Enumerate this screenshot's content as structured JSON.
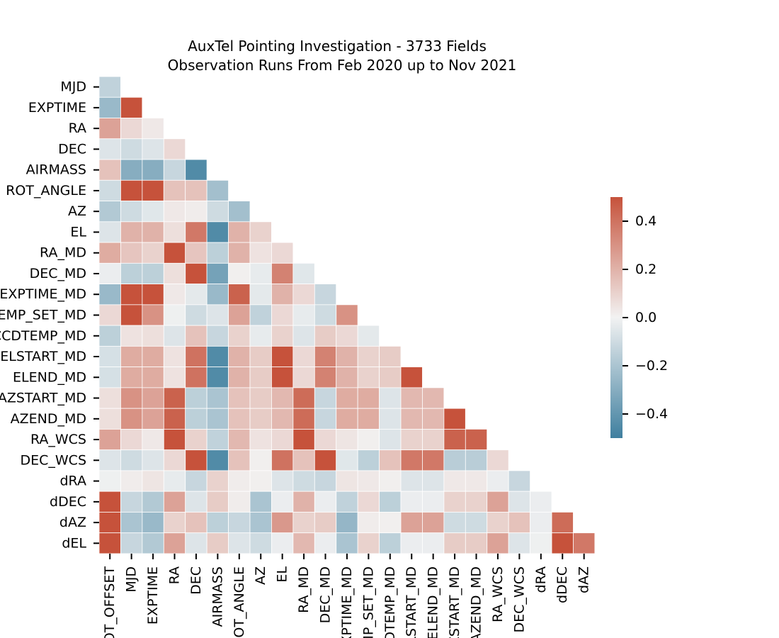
{
  "chart_data": {
    "type": "heatmap",
    "title_lines": [
      "AuxTel Pointing Investigation - 3733 Fields",
      "Observation Runs From Feb 2020 up to Nov 2021"
    ],
    "y_labels": [
      "MJD",
      "EXPTIME",
      "RA",
      "DEC",
      "AIRMASS",
      "ROT_ANGLE",
      "AZ",
      "EL",
      "RA_MD",
      "DEC_MD",
      "EXPTIME_MD",
      "TEMP_SET_MD",
      "CCDTEMP_MD",
      "ELSTART_MD",
      "ELEND_MD",
      "AZSTART_MD",
      "AZEND_MD",
      "RA_WCS",
      "DEC_WCS",
      "dRA",
      "dDEC",
      "dAZ",
      "dEL"
    ],
    "x_labels": [
      "ROT_OFFSET",
      "MJD",
      "EXPTIME",
      "RA",
      "DEC",
      "AIRMASS",
      "ROT_ANGLE",
      "AZ",
      "EL",
      "RA_MD",
      "DEC_MD",
      "EXPTIME_MD",
      "TEMP_SET_MD",
      "CCDTEMP_MD",
      "ELSTART_MD",
      "ELEND_MD",
      "AZSTART_MD",
      "AZEND_MD",
      "RA_WCS",
      "DEC_WCS",
      "dRA",
      "dDEC",
      "dAZ"
    ],
    "matrix": [
      [
        -0.14
      ],
      [
        -0.25,
        0.5
      ],
      [
        0.25,
        0.08,
        0.03
      ],
      [
        -0.06,
        -0.1,
        -0.06,
        0.08
      ],
      [
        0.15,
        -0.3,
        -0.3,
        -0.12,
        -0.45
      ],
      [
        -0.1,
        0.5,
        0.5,
        0.15,
        0.15,
        -0.22
      ],
      [
        -0.18,
        -0.1,
        -0.05,
        0.03,
        0.02,
        -0.1,
        -0.22
      ],
      [
        -0.06,
        0.2,
        0.2,
        0.06,
        0.38,
        -0.45,
        0.2,
        0.1
      ],
      [
        0.22,
        0.14,
        0.1,
        0.5,
        0.14,
        -0.15,
        0.2,
        0.05,
        0.08
      ],
      [
        -0.02,
        -0.15,
        -0.15,
        0.06,
        0.5,
        -0.35,
        0.01,
        -0.03,
        0.35,
        -0.05
      ],
      [
        -0.25,
        0.5,
        0.5,
        0.03,
        -0.04,
        -0.25,
        0.45,
        -0.04,
        0.2,
        0.08,
        -0.12
      ],
      [
        0.08,
        0.5,
        0.3,
        -0.01,
        -0.1,
        -0.06,
        0.25,
        -0.14,
        0.08,
        -0.03,
        -0.1,
        0.3
      ],
      [
        -0.15,
        0.05,
        0.06,
        -0.06,
        0.15,
        -0.12,
        0.1,
        -0.03,
        0.1,
        -0.06,
        0.12,
        0.08,
        -0.04
      ],
      [
        -0.08,
        0.22,
        0.22,
        0.05,
        0.4,
        -0.45,
        0.2,
        0.12,
        0.5,
        0.08,
        0.35,
        0.2,
        0.1,
        0.12
      ],
      [
        -0.08,
        0.22,
        0.22,
        0.05,
        0.4,
        -0.45,
        0.2,
        0.12,
        0.5,
        0.08,
        0.35,
        0.2,
        0.1,
        0.12,
        0.5
      ],
      [
        0.06,
        0.3,
        0.25,
        0.45,
        -0.15,
        -0.2,
        0.15,
        0.12,
        0.18,
        0.42,
        -0.12,
        0.22,
        0.22,
        -0.06,
        0.18,
        0.18
      ],
      [
        0.06,
        0.3,
        0.25,
        0.45,
        -0.15,
        -0.2,
        0.15,
        0.12,
        0.18,
        0.42,
        -0.12,
        0.22,
        0.22,
        -0.06,
        0.18,
        0.18,
        0.5
      ],
      [
        0.25,
        0.08,
        0.03,
        0.5,
        0.1,
        -0.14,
        0.18,
        0.05,
        0.08,
        0.5,
        0.08,
        0.04,
        0.01,
        -0.06,
        0.1,
        0.1,
        0.45,
        0.45
      ],
      [
        -0.06,
        -0.1,
        -0.06,
        0.08,
        0.5,
        -0.45,
        0.15,
        0.01,
        0.4,
        0.15,
        0.5,
        -0.05,
        -0.15,
        0.15,
        0.38,
        0.38,
        -0.16,
        -0.16,
        0.08
      ],
      [
        -0.01,
        0.02,
        0.04,
        -0.03,
        -0.12,
        0.1,
        0.02,
        0.01,
        -0.06,
        -0.1,
        -0.12,
        0.04,
        0.03,
        0.01,
        -0.06,
        -0.06,
        0.03,
        0.03,
        -0.02,
        -0.12
      ],
      [
        0.5,
        -0.12,
        -0.18,
        0.25,
        -0.06,
        0.12,
        0.02,
        -0.2,
        -0.02,
        0.2,
        -0.02,
        -0.14,
        0.08,
        -0.15,
        -0.02,
        -0.02,
        0.1,
        0.1,
        0.25,
        -0.06,
        -0.02
      ],
      [
        0.5,
        -0.2,
        -0.25,
        0.1,
        0.15,
        -0.15,
        -0.12,
        -0.2,
        0.28,
        0.1,
        0.12,
        -0.26,
        0.02,
        0.01,
        0.25,
        0.25,
        -0.1,
        -0.1,
        0.1,
        0.15,
        -0.02,
        0.42
      ],
      [
        0.5,
        -0.12,
        -0.18,
        0.25,
        -0.06,
        0.12,
        -0.06,
        -0.1,
        -0.02,
        0.18,
        -0.02,
        -0.2,
        0.1,
        -0.15,
        -0.02,
        -0.02,
        0.12,
        0.12,
        0.25,
        -0.06,
        -0.01,
        0.5,
        0.38
      ]
    ],
    "colorbar": {
      "min": -0.5,
      "max": 0.5,
      "tick_values": [
        -0.4,
        -0.2,
        0.0,
        0.2,
        0.4
      ],
      "tick_labels": [
        "−0.4",
        "−0.2",
        "0.0",
        "0.2",
        "0.4"
      ]
    },
    "colormap": {
      "negative": "#3f7f9f",
      "neutral": "#f2f2f2",
      "positive": "#c6523b"
    },
    "grid_color": "#ffffff"
  }
}
